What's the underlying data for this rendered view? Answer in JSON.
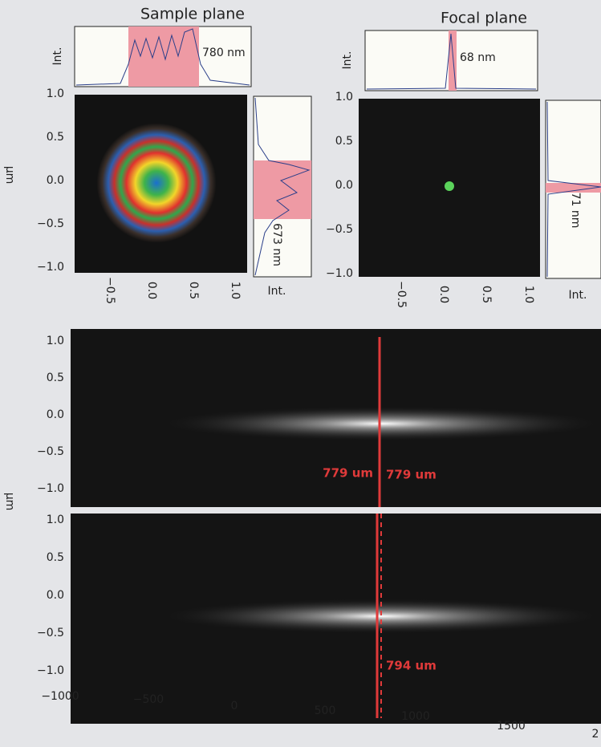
{
  "panels": [
    {
      "title": "Sample plane",
      "top_label": "Int.",
      "top_width": "780 nm",
      "side_label": "Int.",
      "side_width": "673 nm",
      "y_label": "µm",
      "yticks": [
        "1.0",
        "0.5",
        "0.0",
        "−0.5",
        "−1.0"
      ],
      "xticks": [
        "−0.5",
        "0.0",
        "0.5",
        "1.0"
      ]
    },
    {
      "title": "Focal plane",
      "top_label": "Int.",
      "top_width": "68 nm",
      "side_label": "Int.",
      "side_width": "71 nm",
      "yticks": [
        "1.0",
        "0.5",
        "0.0",
        "−0.5",
        "−1.0"
      ],
      "xticks": [
        "−0.5",
        "0.0",
        "0.5",
        "1.0"
      ]
    }
  ],
  "scan": {
    "y_label": "µm",
    "upper": {
      "yticks": [
        "1.0",
        "0.5",
        "0.0",
        "−0.5",
        "−1.0"
      ],
      "left_annotation": "779 um",
      "right_annotation": "779 um"
    },
    "lower": {
      "yticks": [
        "1.0",
        "0.5",
        "0.0",
        "−0.5",
        "−1.0"
      ],
      "annotation": "794 um"
    },
    "xticks": [
      "−1000",
      "−500",
      "0",
      "500",
      "1000",
      "1500",
      "2"
    ]
  }
}
